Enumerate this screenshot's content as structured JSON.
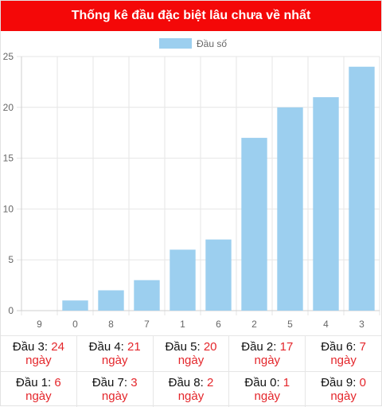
{
  "header": {
    "title": "Thống kê đầu đặc biệt lâu chưa về nhất"
  },
  "colors": {
    "header_bg": "#f40808",
    "bar": "#9ccfef",
    "accent_text": "#e4262b"
  },
  "chart_data": {
    "type": "bar",
    "categories": [
      "9",
      "0",
      "8",
      "7",
      "1",
      "6",
      "2",
      "5",
      "4",
      "3"
    ],
    "series": [
      {
        "name": "Đầu số",
        "values": [
          0,
          1,
          2,
          3,
          6,
          7,
          17,
          20,
          21,
          24
        ]
      }
    ],
    "ylim": [
      0,
      25
    ],
    "yticks": [
      0,
      5,
      10,
      15,
      20,
      25
    ],
    "grid": true,
    "legend": "top-center"
  },
  "stats": {
    "unit": "ngày",
    "rows": [
      [
        {
          "label": "Đầu 3:",
          "value": "24"
        },
        {
          "label": "Đầu 4:",
          "value": "21"
        },
        {
          "label": "Đầu 5:",
          "value": "20"
        },
        {
          "label": "Đầu 2:",
          "value": "17"
        },
        {
          "label": "Đầu 6:",
          "value": "7"
        }
      ],
      [
        {
          "label": "Đầu 1:",
          "value": "6"
        },
        {
          "label": "Đầu 7:",
          "value": "3"
        },
        {
          "label": "Đầu 8:",
          "value": "2"
        },
        {
          "label": "Đầu 0:",
          "value": "1"
        },
        {
          "label": "Đầu 9:",
          "value": "0"
        }
      ]
    ]
  }
}
